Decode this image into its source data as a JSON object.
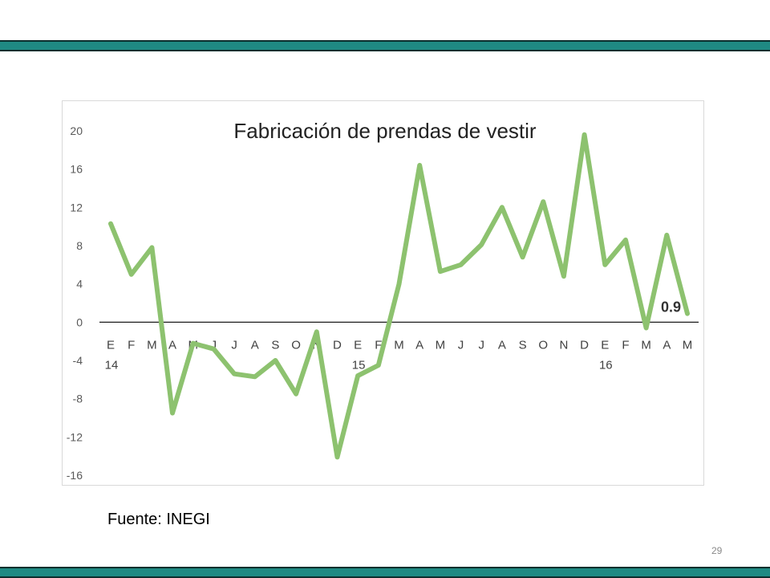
{
  "slide": {
    "source": "Fuente: INEGI",
    "page_number": "29",
    "band_color": "#1f8a83"
  },
  "chart_data": {
    "type": "line",
    "title": "Fabricación de prendas de vestir",
    "xlabel": "",
    "ylabel": "",
    "ylim": [
      -16,
      20
    ],
    "yticks": [
      "20",
      "16",
      "12",
      "8",
      "4",
      "0",
      "-4",
      "-8",
      "-12",
      "-16"
    ],
    "categories": [
      "E",
      "F",
      "M",
      "A",
      "M",
      "J",
      "J",
      "A",
      "S",
      "O",
      "N",
      "D",
      "E",
      "F",
      "M",
      "A",
      "M",
      "J",
      "J",
      "A",
      "S",
      "O",
      "N",
      "D",
      "E",
      "F",
      "M",
      "A",
      "M"
    ],
    "year_labels": [
      {
        "index": 0,
        "label": "14"
      },
      {
        "index": 12,
        "label": "15"
      },
      {
        "index": 24,
        "label": "16"
      }
    ],
    "series": [
      {
        "color": "#8dc26f",
        "values": [
          10.3,
          5.0,
          7.8,
          -9.5,
          -2.2,
          -2.8,
          -5.4,
          -5.7,
          -4.0,
          -7.5,
          -1.0,
          -14.1,
          -5.6,
          -4.5,
          4.0,
          16.4,
          5.3,
          6.0,
          8.1,
          12.0,
          6.8,
          12.6,
          4.8,
          19.6,
          6.0,
          8.6,
          -0.6,
          9.1,
          0.9
        ]
      }
    ],
    "annotation": {
      "index": 28,
      "label": "0.9"
    },
    "grid": false,
    "legend": "none"
  }
}
